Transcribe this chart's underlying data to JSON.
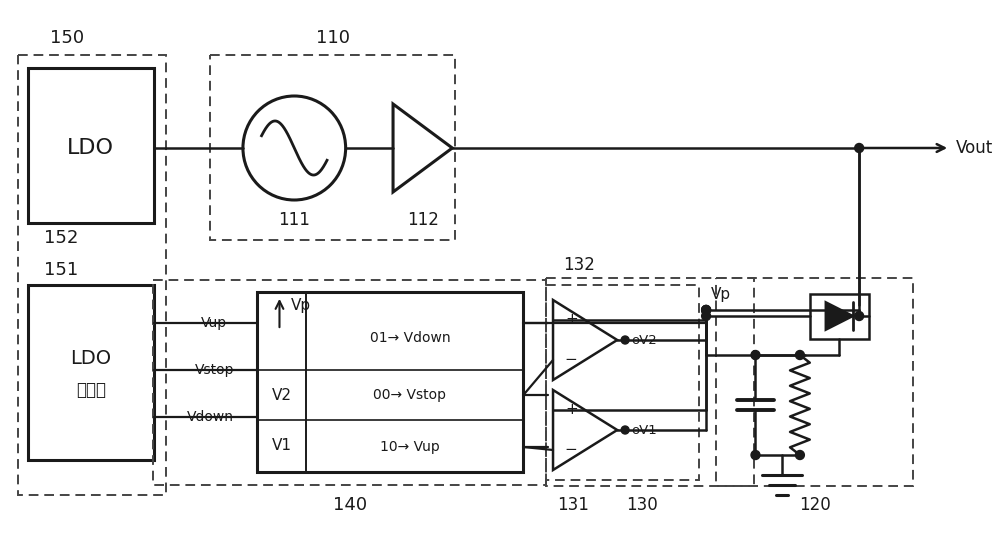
{
  "bg": "#ffffff",
  "lc": "#1a1a1a",
  "dc": "#444444",
  "figsize": [
    10.0,
    5.51
  ],
  "dpi": 100,
  "label_150": "150",
  "label_110": "110",
  "label_152": "152",
  "label_151": "151",
  "label_111": "111",
  "label_112": "112",
  "label_132": "132",
  "label_131": "131",
  "label_130": "130",
  "label_120": "120",
  "label_140": "140",
  "label_Vout": "Vout",
  "label_LDO": "LDO",
  "label_LDOctrl1": "LDO",
  "label_LDOctrl2": "控制器",
  "label_Vup": "Vup",
  "label_Vstop": "Vstop",
  "label_Vdown": "Vdown",
  "label_Vp_arrow": "Vp",
  "label_V2": "V2",
  "label_V1": "V1",
  "label_01": "01→ Vdown",
  "label_00": "00→ Vstop",
  "label_10": "10→ Vup",
  "label_oV2": "oV2",
  "label_oV1": "oV1",
  "label_Vp_node": "Vp"
}
